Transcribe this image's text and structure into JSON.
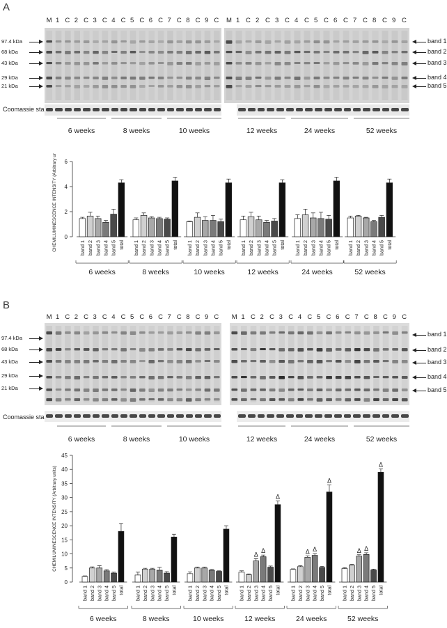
{
  "panels": [
    {
      "label": "A",
      "lanes_left": [
        "M",
        "1",
        "C",
        "2",
        "C",
        "3",
        "C",
        "4",
        "C",
        "5",
        "C",
        "6",
        "C",
        "7",
        "C",
        "8",
        "C",
        "9",
        "C"
      ],
      "lanes_right": [
        "M",
        "1",
        "C",
        "2",
        "C",
        "3",
        "C",
        "4",
        "C",
        "5",
        "C",
        "6",
        "C",
        "7",
        "C",
        "8",
        "C",
        "9",
        "C"
      ],
      "markers": [
        "97.4 kDa",
        "68 kDa",
        "43 kDa",
        "29 kDa",
        "21 kDa"
      ],
      "bands": [
        "band 1",
        "band 2",
        "band 3",
        "band 4",
        "band 5"
      ],
      "coomassie": "Coomassie stain",
      "weeks_left": [
        "6 weeks",
        "8 weeks",
        "10 weeks"
      ],
      "weeks_right": [
        "12 weeks",
        "24 weeks",
        "52 weeks"
      ]
    },
    {
      "label": "B",
      "lanes_left": [
        "M",
        "1",
        "C",
        "2",
        "C",
        "3",
        "C",
        "4",
        "C",
        "5",
        "C",
        "6",
        "C",
        "7",
        "C",
        "8",
        "C",
        "9",
        "C"
      ],
      "lanes_right": [
        "M",
        "1",
        "C",
        "2",
        "C",
        "3",
        "C",
        "4",
        "C",
        "5",
        "C",
        "6",
        "C",
        "7",
        "C",
        "8",
        "C",
        "9",
        "C"
      ],
      "markers": [
        "97.4 kDa",
        "68 kDa",
        "43 kDa",
        "29 kDa",
        "21 kDa"
      ],
      "bands": [
        "band 1",
        "band 2",
        "band 3",
        "band 4",
        "band 5"
      ],
      "coomassie": "Coomassie stain",
      "weeks_left": [
        "6 weeks",
        "8 weeks",
        "10 weeks"
      ],
      "weeks_right": [
        "12 weeks",
        "24 weeks",
        "52 weeks"
      ]
    }
  ],
  "chart_data": [
    {
      "type": "bar",
      "ylabel": "CHEMILUMINESCENCE INTENSITY (Arbitrary units)",
      "ylim": [
        0,
        6
      ],
      "yticks": [
        0,
        2,
        4,
        6
      ],
      "categories": [
        "band 1",
        "band 2",
        "band 3",
        "band 4",
        "band 5",
        "total"
      ],
      "bar_colors": [
        "#ffffff",
        "#d0d0d0",
        "#a8a8a8",
        "#7a7a7a",
        "#4a4a4a",
        "#111111"
      ],
      "groups": [
        {
          "name": "6 weeks",
          "values": [
            1.45,
            1.65,
            1.45,
            1.15,
            1.8,
            4.3
          ],
          "errors": [
            0.1,
            0.3,
            0.2,
            0.15,
            0.4,
            0.25
          ],
          "marks": [
            false,
            false,
            false,
            false,
            false,
            false
          ]
        },
        {
          "name": "8 weeks",
          "values": [
            1.35,
            1.7,
            1.5,
            1.45,
            1.4,
            4.45
          ],
          "errors": [
            0.15,
            0.2,
            0.1,
            0.1,
            0.1,
            0.3
          ],
          "marks": [
            false,
            false,
            false,
            false,
            false,
            false
          ]
        },
        {
          "name": "10 weeks",
          "values": [
            1.2,
            1.55,
            1.3,
            1.3,
            1.2,
            4.3
          ],
          "errors": [
            0.05,
            0.35,
            0.3,
            0.4,
            0.2,
            0.3
          ],
          "marks": [
            false,
            false,
            false,
            false,
            false,
            false
          ]
        },
        {
          "name": "12 weeks",
          "values": [
            1.35,
            1.6,
            1.35,
            1.15,
            1.25,
            4.3
          ],
          "errors": [
            0.3,
            0.35,
            0.3,
            0.15,
            0.2,
            0.25
          ],
          "marks": [
            false,
            false,
            false,
            false,
            false,
            false
          ]
        },
        {
          "name": "24 weeks",
          "values": [
            1.45,
            1.75,
            1.5,
            1.45,
            1.4,
            4.45
          ],
          "errors": [
            0.3,
            0.45,
            0.4,
            0.5,
            0.3,
            0.3
          ],
          "marks": [
            false,
            false,
            false,
            false,
            false,
            false
          ]
        },
        {
          "name": "52 weeks",
          "values": [
            1.5,
            1.65,
            1.5,
            1.2,
            1.55,
            4.3
          ],
          "errors": [
            0.15,
            0.05,
            0.05,
            0.1,
            0.15,
            0.3
          ],
          "marks": [
            false,
            false,
            false,
            false,
            false,
            false
          ]
        }
      ]
    },
    {
      "type": "bar",
      "ylabel": "CHEMILUMINESCENCE INTENSITY (Arbitrary units)",
      "ylim": [
        0,
        45
      ],
      "yticks": [
        0,
        5,
        10,
        15,
        20,
        25,
        30,
        35,
        40,
        45
      ],
      "mark_symbol": "Δ",
      "categories": [
        "band 1",
        "band 2",
        "band 3",
        "band 4",
        "band 5",
        "total"
      ],
      "bar_colors": [
        "#ffffff",
        "#d0d0d0",
        "#a8a8a8",
        "#7a7a7a",
        "#4a4a4a",
        "#111111"
      ],
      "groups": [
        {
          "name": "6 weeks",
          "values": [
            2.0,
            5.0,
            5.0,
            4.0,
            3.2,
            18.0
          ],
          "errors": [
            0.2,
            0.4,
            0.8,
            0.4,
            0.3,
            2.8
          ],
          "marks": [
            false,
            false,
            false,
            false,
            false,
            false
          ]
        },
        {
          "name": "8 weeks",
          "values": [
            2.5,
            4.6,
            4.6,
            4.2,
            3.2,
            16.0
          ],
          "errors": [
            1.0,
            0.3,
            0.3,
            1.0,
            0.5,
            1.0
          ],
          "marks": [
            false,
            false,
            false,
            false,
            false,
            false
          ]
        },
        {
          "name": "10 weeks",
          "values": [
            3.0,
            5.0,
            5.0,
            4.2,
            3.8,
            18.8
          ],
          "errors": [
            0.6,
            0.3,
            0.3,
            0.3,
            0.2,
            1.2
          ],
          "marks": [
            false,
            false,
            false,
            false,
            false,
            false
          ]
        },
        {
          "name": "12 weeks",
          "values": [
            3.5,
            2.6,
            7.5,
            9.0,
            5.3,
            27.5
          ],
          "errors": [
            0.5,
            0.3,
            0.8,
            0.6,
            0.4,
            1.3
          ],
          "marks": [
            false,
            false,
            true,
            true,
            false,
            true
          ]
        },
        {
          "name": "24 weeks",
          "values": [
            4.5,
            5.5,
            8.8,
            9.5,
            5.2,
            32.0
          ],
          "errors": [
            0.2,
            0.3,
            0.5,
            0.6,
            0.4,
            2.5
          ],
          "marks": [
            false,
            false,
            true,
            true,
            false,
            true
          ]
        },
        {
          "name": "52 weeks",
          "values": [
            4.8,
            6.0,
            9.2,
            9.8,
            4.3,
            39.0
          ],
          "errors": [
            0.3,
            0.3,
            0.5,
            0.6,
            0.3,
            1.2
          ],
          "marks": [
            false,
            false,
            true,
            true,
            false,
            true
          ]
        }
      ]
    }
  ]
}
